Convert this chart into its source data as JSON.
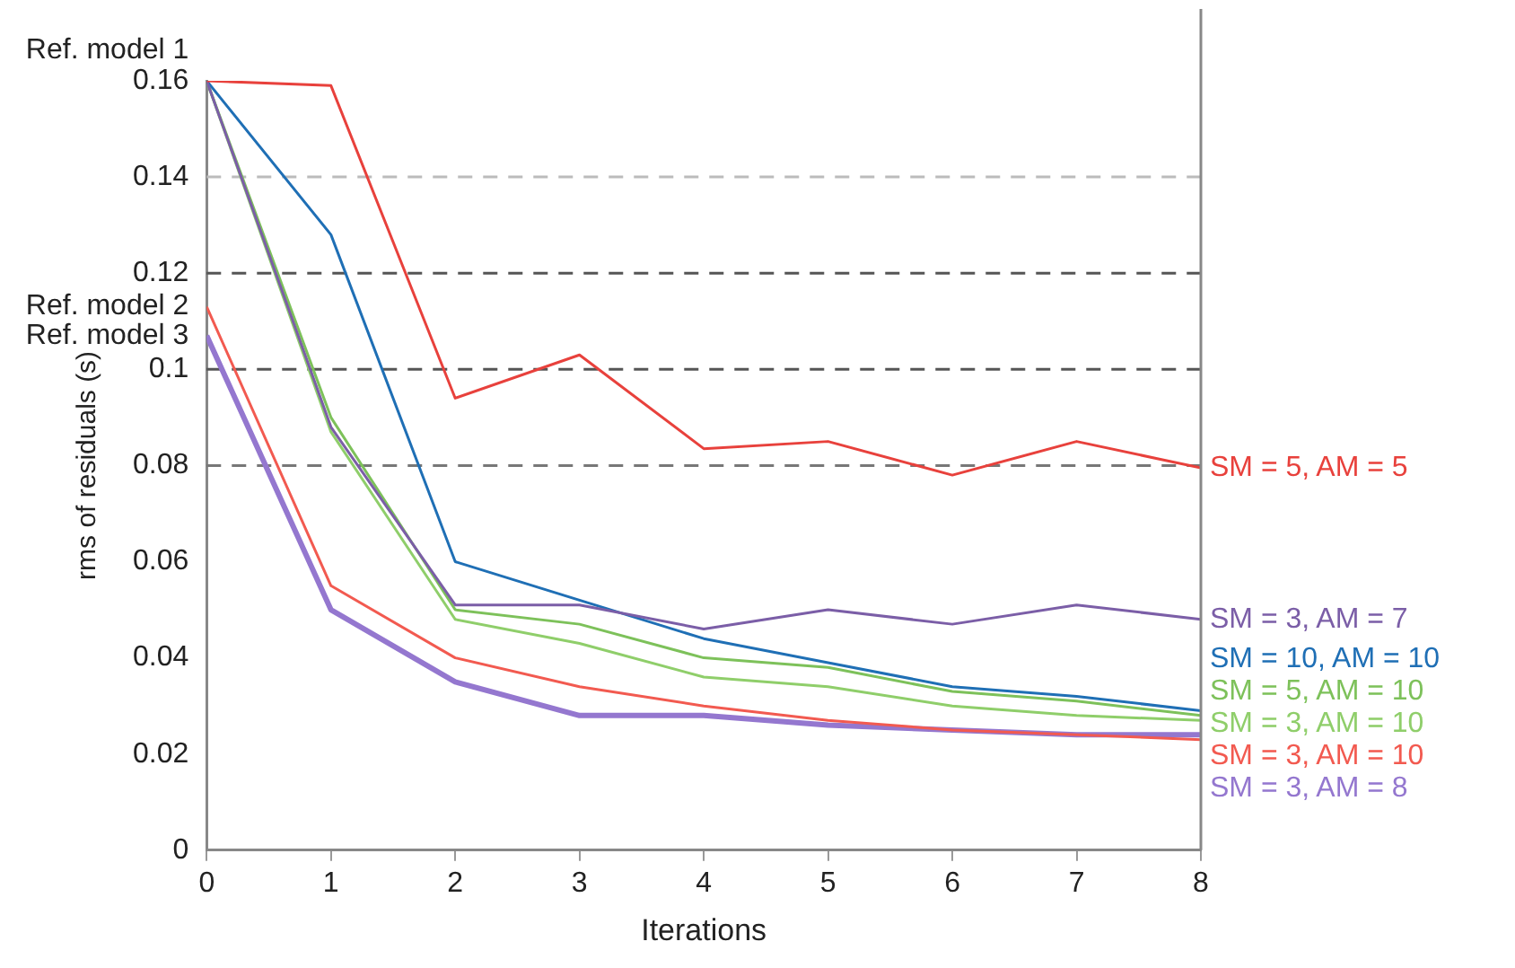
{
  "chart_data": {
    "type": "line",
    "xlabel": "Iterations",
    "ylabel": "rms of residuals (s)",
    "x": [
      0,
      1,
      2,
      3,
      4,
      5,
      6,
      7,
      8
    ],
    "xlim": [
      0,
      8
    ],
    "xticks": [
      0,
      1,
      2,
      3,
      4,
      5,
      6,
      7,
      8
    ],
    "ylim": [
      0,
      0.16
    ],
    "yticks": [
      0,
      0.02,
      0.04,
      0.06,
      0.08,
      0.1,
      0.12,
      0.14,
      0.16
    ],
    "grid": false,
    "legend": false,
    "marker": "none",
    "line_style": "solid",
    "series": [
      {
        "name": "SM = 5, AM = 5",
        "color": "#e8413c",
        "values": [
          0.16,
          0.159,
          0.094,
          0.103,
          0.0835,
          0.085,
          0.078,
          0.085,
          0.0795
        ]
      },
      {
        "name": "SM = 3, AM = 7",
        "color": "#7b5ea7",
        "values": [
          0.16,
          0.088,
          0.051,
          0.051,
          0.046,
          0.05,
          0.047,
          0.051,
          0.048
        ]
      },
      {
        "name": "SM = 10, AM = 10",
        "color": "#1f6fb5",
        "values": [
          0.16,
          0.128,
          0.06,
          0.052,
          0.044,
          0.039,
          0.034,
          0.032,
          0.029
        ]
      },
      {
        "name": "SM = 5, AM = 10",
        "color": "#7dc15a",
        "values": [
          0.16,
          0.09,
          0.05,
          0.047,
          0.04,
          0.038,
          0.033,
          0.031,
          0.028
        ]
      },
      {
        "name": "SM = 3, AM = 10",
        "color": "#8fce6a",
        "values": [
          0.16,
          0.087,
          0.048,
          0.043,
          0.036,
          0.034,
          0.03,
          0.028,
          0.027
        ]
      },
      {
        "name": "SM = 3, AM = 10",
        "color": "#f25a50",
        "values": [
          0.113,
          0.055,
          0.04,
          0.034,
          0.03,
          0.027,
          0.025,
          0.024,
          0.023
        ]
      },
      {
        "name": "SM = 3, AM = 8",
        "color": "#9477cf",
        "values": [
          0.107,
          0.05,
          0.035,
          0.028,
          0.028,
          0.026,
          0.025,
          0.024,
          0.024
        ]
      }
    ],
    "ref_lines": [
      {
        "axis": "y",
        "value": 0.14,
        "color": "#bbbbbb",
        "line_style": "dashed"
      },
      {
        "axis": "y",
        "value": 0.12,
        "color": "#555555",
        "line_style": "dashed"
      },
      {
        "axis": "y",
        "value": 0.1,
        "color": "#555555",
        "line_style": "dashed"
      },
      {
        "axis": "y",
        "value": 0.08,
        "color": "#777777",
        "line_style": "dashed"
      }
    ],
    "annotations": [
      "Ref. model 1",
      "Ref. model 2",
      "Ref. model 3"
    ]
  }
}
